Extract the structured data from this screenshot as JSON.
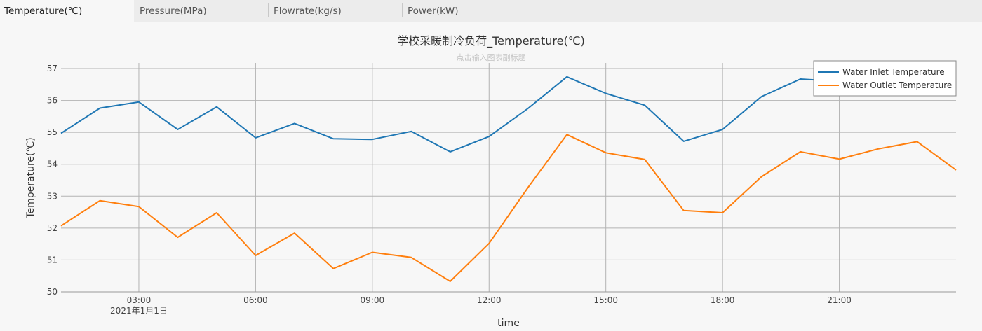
{
  "tabs": [
    {
      "label": "Temperature(℃)",
      "active": true
    },
    {
      "label": "Pressure(MPa)",
      "active": false
    },
    {
      "label": "Flowrate(kg/s)",
      "active": false
    },
    {
      "label": "Power(kW)",
      "active": false
    }
  ],
  "chart_data": {
    "type": "line",
    "title": "学校采暖制冷负荷_Temperature(℃)",
    "subtitle_placeholder": "点击输入图表副标题",
    "xlabel": "time",
    "ylabel": "Temperature(℃)",
    "x": [
      "01:00",
      "02:00",
      "03:00",
      "04:00",
      "05:00",
      "06:00",
      "07:00",
      "08:00",
      "09:00",
      "10:00",
      "11:00",
      "12:00",
      "13:00",
      "14:00",
      "15:00",
      "16:00",
      "17:00",
      "18:00",
      "19:00",
      "20:00",
      "21:00",
      "22:00",
      "23:00",
      "24:00"
    ],
    "xticks": [
      "03:00",
      "06:00",
      "09:00",
      "12:00",
      "15:00",
      "18:00",
      "21:00"
    ],
    "xtick_date": "2021年1月1日",
    "xlim": [
      "01:00",
      "24:00"
    ],
    "ylim": [
      50,
      57
    ],
    "yticks": [
      50,
      51,
      52,
      53,
      54,
      55,
      56,
      57
    ],
    "grid": true,
    "legend_position": "top-right",
    "series": [
      {
        "name": "Water Inlet Temperature",
        "color": "#1f77b4",
        "values": [
          54.97,
          55.76,
          55.95,
          55.09,
          55.8,
          54.83,
          55.28,
          54.8,
          54.78,
          55.03,
          54.39,
          54.87,
          55.75,
          56.74,
          56.22,
          55.85,
          54.72,
          55.09,
          56.12,
          56.67,
          56.6,
          56.7,
          56.65,
          56.64
        ]
      },
      {
        "name": "Water Outlet Temperature",
        "color": "#ff7f0e",
        "values": [
          52.07,
          52.86,
          52.67,
          51.71,
          52.48,
          51.14,
          51.84,
          50.73,
          51.24,
          51.08,
          50.33,
          51.52,
          53.27,
          54.93,
          54.36,
          54.15,
          52.55,
          52.48,
          53.61,
          54.39,
          54.16,
          54.48,
          54.71,
          53.82
        ]
      }
    ]
  }
}
